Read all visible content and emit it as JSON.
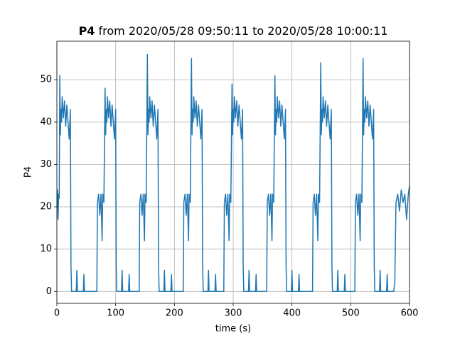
{
  "chart_data": {
    "type": "line",
    "title_bold": "P4",
    "title": "from 2020/05/28 09:50:11 to 2020/05/28 10:00:11",
    "xlabel": "time (s)",
    "ylabel": "P4",
    "xlim": [
      0,
      600
    ],
    "ylim": [
      -2.8,
      59.1
    ],
    "xticks": [
      0,
      100,
      200,
      300,
      400,
      500,
      600
    ],
    "yticks": [
      0,
      10,
      20,
      30,
      40,
      50
    ],
    "grid": true,
    "series": [
      {
        "color": "#1f77b4",
        "x": [
          0,
          1,
          2,
          3,
          4,
          5,
          6,
          7,
          8,
          9,
          11,
          13,
          15,
          17,
          19,
          21,
          23,
          24,
          25,
          33,
          34,
          35,
          45,
          46,
          47,
          57,
          68,
          69,
          71,
          73,
          75,
          77,
          78,
          80,
          82,
          83,
          84,
          85,
          86,
          88,
          90,
          92,
          94,
          96,
          98,
          100,
          101,
          102,
          110,
          111,
          112,
          122,
          123,
          124,
          134,
          140,
          141,
          143,
          145,
          147,
          149,
          150,
          152,
          154,
          155,
          156,
          157,
          158,
          160,
          162,
          164,
          166,
          168,
          170,
          172,
          173,
          174,
          182,
          183,
          184,
          194,
          195,
          196,
          206,
          215,
          216,
          218,
          220,
          222,
          224,
          225,
          227,
          229,
          230,
          231,
          232,
          233,
          235,
          237,
          239,
          241,
          243,
          245,
          247,
          248,
          249,
          257,
          258,
          259,
          269,
          270,
          271,
          281,
          284,
          285,
          287,
          289,
          291,
          293,
          294,
          296,
          298,
          299,
          300,
          301,
          302,
          304,
          306,
          308,
          310,
          312,
          314,
          316,
          317,
          318,
          326,
          327,
          328,
          338,
          339,
          340,
          350,
          357,
          358,
          360,
          362,
          364,
          366,
          367,
          369,
          371,
          372,
          373,
          374,
          375,
          377,
          379,
          381,
          383,
          385,
          387,
          389,
          390,
          391,
          399,
          400,
          401,
          411,
          412,
          413,
          423,
          435,
          436,
          438,
          440,
          442,
          444,
          445,
          447,
          449,
          450,
          451,
          452,
          453,
          455,
          457,
          459,
          461,
          463,
          465,
          467,
          468,
          469,
          477,
          478,
          479,
          489,
          490,
          491,
          501,
          507,
          508,
          510,
          512,
          514,
          516,
          517,
          519,
          521,
          522,
          523,
          524,
          525,
          527,
          529,
          531,
          533,
          535,
          537,
          539,
          540,
          541,
          549,
          550,
          551,
          561,
          562,
          563,
          573,
          575,
          577,
          580,
          583,
          586,
          589,
          592,
          595,
          598,
          600
        ],
        "values": [
          20,
          24,
          17,
          23,
          22,
          51,
          37,
          43,
          40,
          46,
          41,
          45,
          39,
          44,
          40,
          36,
          43,
          6,
          0,
          0,
          5,
          0,
          0,
          4,
          0,
          0,
          0,
          21,
          23,
          18,
          23,
          12,
          23,
          21,
          48,
          37,
          43,
          40,
          46,
          41,
          45,
          39,
          44,
          40,
          36,
          43,
          6,
          0,
          0,
          5,
          0,
          0,
          4,
          0,
          0,
          0,
          21,
          23,
          18,
          23,
          12,
          23,
          21,
          56,
          37,
          43,
          40,
          46,
          41,
          45,
          39,
          44,
          40,
          36,
          43,
          6,
          0,
          0,
          5,
          0,
          0,
          4,
          0,
          0,
          0,
          21,
          23,
          18,
          23,
          12,
          23,
          21,
          55,
          37,
          43,
          40,
          46,
          41,
          45,
          39,
          44,
          40,
          36,
          43,
          6,
          0,
          0,
          5,
          0,
          0,
          4,
          0,
          0,
          0,
          21,
          23,
          18,
          23,
          12,
          23,
          21,
          49,
          37,
          43,
          40,
          46,
          41,
          45,
          39,
          44,
          40,
          36,
          43,
          6,
          0,
          0,
          5,
          0,
          0,
          4,
          0,
          0,
          0,
          21,
          23,
          18,
          23,
          12,
          23,
          21,
          51,
          37,
          43,
          40,
          46,
          41,
          45,
          39,
          44,
          40,
          36,
          43,
          6,
          0,
          0,
          5,
          0,
          0,
          4,
          0,
          0,
          0,
          21,
          23,
          18,
          23,
          12,
          23,
          21,
          54,
          37,
          43,
          40,
          46,
          41,
          45,
          39,
          44,
          40,
          36,
          43,
          6,
          0,
          0,
          5,
          0,
          0,
          4,
          0,
          0,
          0,
          21,
          23,
          18,
          23,
          12,
          23,
          21,
          55,
          37,
          43,
          40,
          46,
          41,
          45,
          39,
          44,
          40,
          36,
          43,
          6,
          0,
          0,
          5,
          0,
          0,
          4,
          0,
          0,
          2,
          21,
          23,
          19,
          24,
          21,
          23,
          17,
          23,
          25
        ]
      }
    ]
  }
}
